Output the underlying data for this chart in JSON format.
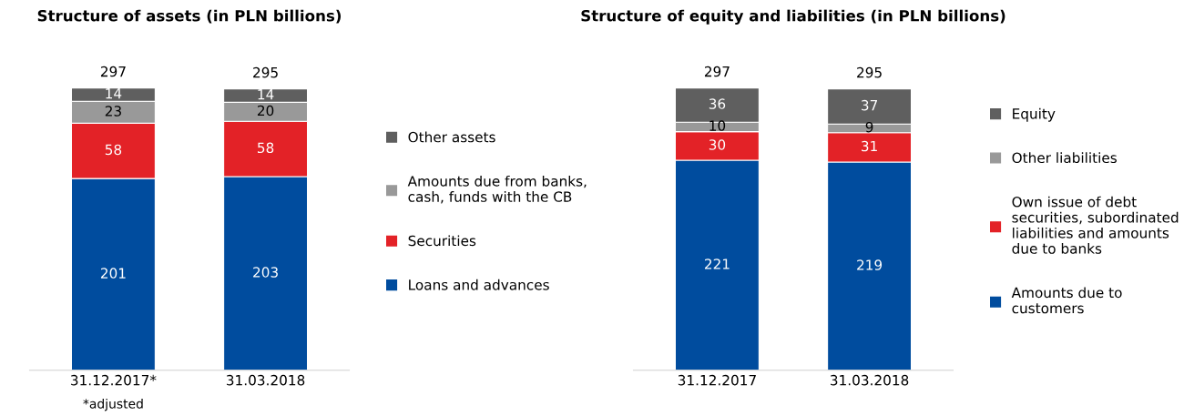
{
  "chart_data": [
    {
      "type": "bar",
      "title": "Structure of assets (in PLN billions)",
      "categories": [
        "31.12.2017*",
        "31.03.2018"
      ],
      "stacked": true,
      "data_labels": true,
      "legend": "right",
      "totals": [
        "297",
        "295"
      ],
      "annotations": [
        "*adjusted"
      ],
      "series": [
        {
          "name": "Loans and advances",
          "color": "#004c9e",
          "values": [
            201,
            203
          ]
        },
        {
          "name": "Securities",
          "color": "#e32227",
          "values": [
            58,
            58
          ]
        },
        {
          "name": "Amounts due from banks,\ncash, funds with the CB",
          "color": "#999999",
          "values": [
            23,
            20
          ]
        },
        {
          "name": "Other assets",
          "color": "#5f5f5f",
          "values": [
            14,
            14
          ]
        }
      ]
    },
    {
      "type": "bar",
      "title": "Structure of equity and liabilities (in PLN billions)",
      "categories": [
        "31.12.2017",
        "31.03.2018"
      ],
      "stacked": true,
      "data_labels": true,
      "legend": "right",
      "totals": [
        "297",
        "295"
      ],
      "series": [
        {
          "name": "Amounts due to\ncustomers",
          "color": "#004c9e",
          "values": [
            221,
            219
          ]
        },
        {
          "name": "Own issue of debt\nsecurities, subordinated\nliabilities and amounts\ndue to banks",
          "color": "#e32227",
          "values": [
            30,
            31
          ]
        },
        {
          "name": "Other liabilities",
          "color": "#999999",
          "values": [
            10,
            9
          ]
        },
        {
          "name": "Equity",
          "color": "#5f5f5f",
          "values": [
            36,
            37
          ]
        }
      ]
    }
  ]
}
